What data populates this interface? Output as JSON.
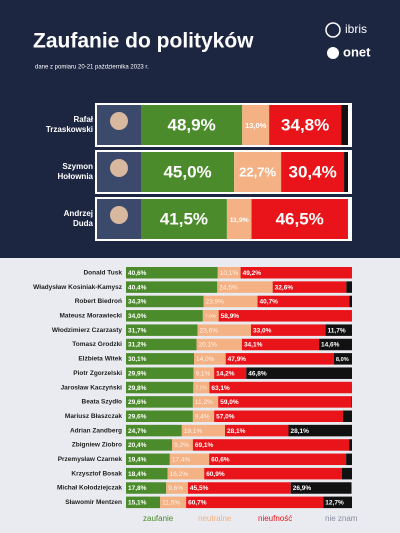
{
  "logos": [
    "ibris",
    "onet"
  ],
  "chart_data": [
    {
      "type": "bar",
      "orientation": "horizontal",
      "stacked": true,
      "title": "Zaufanie do polityków",
      "subtitle": "dane z pomiaru 20-21 października 2023 r.",
      "categories": [
        "Rafał Trzaskowski",
        "Szymon Hołownia",
        "Andrzej Duda"
      ],
      "xlim": [
        0,
        100
      ],
      "series": [
        {
          "name": "zaufanie",
          "color": "#4b8b2b",
          "values": [
            48.9,
            45.0,
            41.5
          ],
          "value_labels": [
            "48,9%",
            "45,0%",
            "41,5%"
          ]
        },
        {
          "name": "neutralne",
          "color": "#f4b183",
          "values": [
            13.0,
            22.7,
            11.9
          ],
          "value_labels": [
            "13,0%",
            "22,7%",
            "11,9%"
          ]
        },
        {
          "name": "nieufność",
          "color": "#e8141a",
          "values": [
            34.8,
            30.4,
            46.5
          ],
          "value_labels": [
            "34,8%",
            "30,4%",
            "46,5%"
          ]
        },
        {
          "name": "nie znam",
          "color": "#111111",
          "values": [
            3.3,
            1.9,
            0.1
          ],
          "value_labels": [
            null,
            null,
            null
          ]
        }
      ]
    },
    {
      "type": "bar",
      "orientation": "horizontal",
      "stacked": true,
      "categories": [
        "Donald Tusk",
        "Władysław Kosiniak-Kamysz",
        "Robert Biedroń",
        "Mateusz Morawiecki",
        "Włodzimierz Czarzasty",
        "Tomasz Grodzki",
        "Elżbieta Witek",
        "Piotr Zgorzelski",
        "Jarosław Kaczyński",
        "Beata Szydło",
        "Mariusz Błaszczak",
        "Adrian Zandberg",
        "Zbigniew Ziobro",
        "Przemysław Czarnek",
        "Krzysztof Bosak",
        "Michał Kołodziejczak",
        "Sławomir Mentzen"
      ],
      "xlim": [
        0,
        100
      ],
      "legend": "bottom",
      "series": [
        {
          "name": "zaufanie",
          "color": "#4b8b2b",
          "values": [
            40.6,
            40.4,
            34.3,
            34.0,
            31.7,
            31.2,
            30.1,
            29.9,
            29.8,
            29.6,
            29.6,
            24.7,
            20.4,
            19.4,
            18.4,
            17.8,
            15.1
          ],
          "value_labels": [
            "40,6%",
            "40,4%",
            "34,3%",
            "34,0%",
            "31,7%",
            "31,2%",
            "30,1%",
            "29,9%",
            "29,8%",
            "29,6%",
            "29,6%",
            "24,7%",
            "20,4%",
            "19,4%",
            "18,4%",
            "17,8%",
            "15,1%"
          ]
        },
        {
          "name": "neutralne",
          "color": "#f4b183",
          "values": [
            10.1,
            24.5,
            23.9,
            7.0,
            23.6,
            20.1,
            14.0,
            9.1,
            7.1,
            11.2,
            9.4,
            19.1,
            9.2,
            17.4,
            16.2,
            9.6,
            11.5
          ],
          "value_labels": [
            "10,1%",
            "24,5%",
            "23,9%",
            "7,0%",
            "23,6%",
            "20,1%",
            "14,0%",
            "9,1%",
            "7,1%",
            "11,2%",
            "9,4%",
            "19,1%",
            "9,2%",
            "17,4%",
            "16,2%",
            "9,6%",
            "11,5%"
          ]
        },
        {
          "name": "nieufność",
          "color": "#e8141a",
          "values": [
            49.2,
            32.6,
            40.7,
            58.9,
            33.0,
            34.1,
            47.9,
            14.2,
            63.1,
            59.0,
            57.0,
            28.1,
            69.1,
            60.6,
            60.9,
            45.5,
            60.7
          ],
          "value_labels": [
            "49,2%",
            "32,6%",
            "40,7%",
            "58,9%",
            "33,0%",
            "34,1%",
            "47,9%",
            "14,2%",
            "63,1%",
            "59,0%",
            "57,0%",
            "28,1%",
            "69,1%",
            "60,6%",
            "60,9%",
            "45,5%",
            "60,7%"
          ]
        },
        {
          "name": "nie znam",
          "color": "#111111",
          "values": [
            0.1,
            2.5,
            1.1,
            0.1,
            11.7,
            14.6,
            8.0,
            46.8,
            0.0,
            0.2,
            4.0,
            28.1,
            1.3,
            2.6,
            4.5,
            26.9,
            12.7
          ],
          "value_labels": [
            null,
            null,
            null,
            null,
            "11,7%",
            "14,6%",
            "8,0%",
            "46,8%",
            null,
            null,
            null,
            "28,1%",
            null,
            null,
            null,
            "26,9%",
            "12,7%"
          ]
        }
      ]
    }
  ]
}
